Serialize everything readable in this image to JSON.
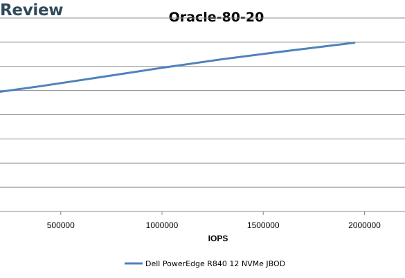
{
  "brand": {
    "text": "Review"
  },
  "chart_data": {
    "type": "line",
    "title": "Oracle-80-20",
    "xlabel": "IOPS",
    "ylabel": "",
    "xlim": [
      200000,
      2200000
    ],
    "x_ticks": [
      500000,
      1000000,
      1500000,
      2000000
    ],
    "x_tick_labels": [
      "500000",
      "1000000",
      "1500000",
      "2000000"
    ],
    "ylim": [
      0,
      8
    ],
    "y_gridlines": [
      1,
      2,
      3,
      4,
      5,
      6,
      7,
      8
    ],
    "grid": true,
    "legend_position": "bottom",
    "series": [
      {
        "name": "Dell PowerEdge R840 12 NVMe JBOD",
        "color": "#4f81bd",
        "x": [
          200000,
          400000,
          700000,
          1000000,
          1300000,
          1600000,
          1950000
        ],
        "y": [
          4.95,
          5.18,
          5.56,
          5.94,
          6.3,
          6.62,
          6.98
        ]
      }
    ]
  }
}
